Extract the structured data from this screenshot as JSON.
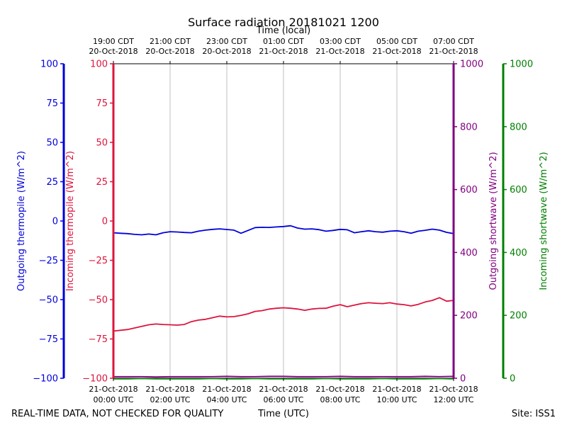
{
  "chart_data": {
    "type": "line",
    "title": "Surface radiation 20181021 1200",
    "top_axis_label": "Time (local)",
    "bottom_axis_label": "Time (UTC)",
    "footer_left": "REAL-TIME DATA, NOT CHECKED FOR QUALITY",
    "footer_right": "Site: ISS1",
    "x_utc_hours_range": [
      0,
      12
    ],
    "top_ticks": [
      {
        "hour": 0,
        "l1": "19:00 CDT",
        "l2": "20-Oct-2018"
      },
      {
        "hour": 2,
        "l1": "21:00 CDT",
        "l2": "20-Oct-2018"
      },
      {
        "hour": 4,
        "l1": "23:00 CDT",
        "l2": "20-Oct-2018"
      },
      {
        "hour": 6,
        "l1": "01:00 CDT",
        "l2": "21-Oct-2018"
      },
      {
        "hour": 8,
        "l1": "03:00 CDT",
        "l2": "21-Oct-2018"
      },
      {
        "hour": 10,
        "l1": "05:00 CDT",
        "l2": "21-Oct-2018"
      },
      {
        "hour": 12,
        "l1": "07:00 CDT",
        "l2": "21-Oct-2018"
      }
    ],
    "bottom_ticks": [
      {
        "hour": 0,
        "l1": "21-Oct-2018",
        "l2": "00:00 UTC"
      },
      {
        "hour": 2,
        "l1": "21-Oct-2018",
        "l2": "02:00 UTC"
      },
      {
        "hour": 4,
        "l1": "21-Oct-2018",
        "l2": "04:00 UTC"
      },
      {
        "hour": 6,
        "l1": "21-Oct-2018",
        "l2": "06:00 UTC"
      },
      {
        "hour": 8,
        "l1": "21-Oct-2018",
        "l2": "08:00 UTC"
      },
      {
        "hour": 10,
        "l1": "21-Oct-2018",
        "l2": "10:00 UTC"
      },
      {
        "hour": 12,
        "l1": "21-Oct-2018",
        "l2": "12:00 UTC"
      }
    ],
    "axes": [
      {
        "key": "out_thermo",
        "label": "Outgoing thermopile (W/m^2)",
        "color": "#0000dd",
        "range": [
          -100,
          100
        ],
        "ticks": [
          100,
          75,
          50,
          25,
          0,
          -25,
          -50,
          -75,
          -100
        ],
        "tick_labels": [
          "100",
          "75",
          "50",
          "25",
          "0",
          "−25",
          "−50",
          "−75",
          "−100"
        ]
      },
      {
        "key": "in_thermo",
        "label": "Incoming thermopile (W/m^2)",
        "color": "#dc143c",
        "range": [
          -100,
          100
        ],
        "ticks": [
          100,
          75,
          50,
          25,
          0,
          -25,
          -50,
          -75,
          -100
        ],
        "tick_labels": [
          "100",
          "75",
          "50",
          "25",
          "0",
          "−25",
          "−50",
          "−75",
          "−100"
        ]
      },
      {
        "key": "out_sw",
        "label": "Outgoing shortwave (W/m^2)",
        "color": "#800080",
        "range": [
          0,
          1000
        ],
        "ticks": [
          1000,
          800,
          600,
          400,
          200,
          0
        ],
        "tick_labels": [
          "1000",
          "800",
          "600",
          "400",
          "200",
          "0"
        ]
      },
      {
        "key": "in_sw",
        "label": "Incoming shortwave (W/m^2)",
        "color": "#008000",
        "range": [
          0,
          1000
        ],
        "ticks": [
          1000,
          800,
          600,
          400,
          200,
          0
        ],
        "tick_labels": [
          "1000",
          "800",
          "600",
          "400",
          "200",
          "0"
        ]
      }
    ],
    "series": [
      {
        "name": "Outgoing thermopile",
        "axis": "out_thermo",
        "color": "#0000dd",
        "x": [
          0,
          0.25,
          0.5,
          0.75,
          1.0,
          1.25,
          1.5,
          1.75,
          2.0,
          2.25,
          2.5,
          2.75,
          3.0,
          3.25,
          3.5,
          3.75,
          4.0,
          4.25,
          4.5,
          4.75,
          5.0,
          5.25,
          5.5,
          5.75,
          6.0,
          6.25,
          6.5,
          6.75,
          7.0,
          7.25,
          7.5,
          7.75,
          8.0,
          8.25,
          8.5,
          8.75,
          9.0,
          9.25,
          9.5,
          9.75,
          10.0,
          10.25,
          10.5,
          10.75,
          11.0,
          11.25,
          11.5,
          11.75,
          12.0
        ],
        "values": [
          -7.5,
          -7.8,
          -8.0,
          -8.5,
          -8.8,
          -8.3,
          -8.8,
          -7.5,
          -6.8,
          -7.0,
          -7.3,
          -7.5,
          -6.5,
          -5.8,
          -5.3,
          -5.0,
          -5.4,
          -5.8,
          -7.8,
          -6.0,
          -4.2,
          -4.0,
          -4.1,
          -3.8,
          -3.5,
          -3.0,
          -4.5,
          -5.2,
          -5.0,
          -5.5,
          -6.5,
          -6.0,
          -5.3,
          -5.6,
          -7.5,
          -6.8,
          -6.2,
          -6.8,
          -7.1,
          -6.5,
          -6.2,
          -6.8,
          -7.8,
          -6.5,
          -5.9,
          -5.2,
          -5.8,
          -7.2,
          -8.0
        ]
      },
      {
        "name": "Incoming thermopile",
        "axis": "in_thermo",
        "color": "#dc143c",
        "x": [
          0,
          0.25,
          0.5,
          0.75,
          1.0,
          1.25,
          1.5,
          1.75,
          2.0,
          2.25,
          2.5,
          2.75,
          3.0,
          3.25,
          3.5,
          3.75,
          4.0,
          4.25,
          4.5,
          4.75,
          5.0,
          5.25,
          5.5,
          5.75,
          6.0,
          6.25,
          6.5,
          6.75,
          7.0,
          7.25,
          7.5,
          7.75,
          8.0,
          8.25,
          8.5,
          8.75,
          9.0,
          9.25,
          9.5,
          9.75,
          10.0,
          10.25,
          10.5,
          10.75,
          11.0,
          11.25,
          11.5,
          11.75,
          12.0
        ],
        "values": [
          -70.0,
          -69.5,
          -69.0,
          -68.0,
          -67.0,
          -66.0,
          -65.5,
          -65.8,
          -66.0,
          -66.2,
          -65.8,
          -64.0,
          -63.0,
          -62.5,
          -61.5,
          -60.5,
          -61.0,
          -60.8,
          -60.0,
          -59.0,
          -57.5,
          -57.0,
          -56.0,
          -55.5,
          -55.2,
          -55.5,
          -56.0,
          -56.8,
          -56.0,
          -55.6,
          -55.5,
          -54.2,
          -53.2,
          -54.5,
          -53.5,
          -52.5,
          -52.0,
          -52.3,
          -52.5,
          -52.0,
          -52.8,
          -53.2,
          -54.0,
          -53.0,
          -51.5,
          -50.5,
          -48.8,
          -51.0,
          -50.5
        ]
      },
      {
        "name": "Outgoing shortwave",
        "axis": "out_sw",
        "color": "#800080",
        "x": [
          0,
          0.5,
          1.0,
          1.5,
          2.0,
          2.5,
          3.0,
          3.5,
          4.0,
          4.5,
          5.0,
          5.5,
          6.0,
          6.5,
          7.0,
          7.5,
          8.0,
          8.5,
          9.0,
          9.5,
          10.0,
          10.5,
          11.0,
          11.5,
          12.0
        ],
        "values": [
          5,
          5,
          5,
          4,
          5,
          5,
          5,
          5,
          6,
          5,
          5,
          6,
          6,
          5,
          5,
          5,
          6,
          5,
          5,
          5,
          5,
          5,
          6,
          5,
          6
        ]
      },
      {
        "name": "Incoming shortwave",
        "axis": "in_sw",
        "color": "#008000",
        "x": [
          0,
          0.5,
          1.0,
          1.5,
          2.0,
          2.5,
          3.0,
          3.5,
          4.0,
          4.5,
          5.0,
          5.5,
          6.0,
          6.5,
          7.0,
          7.5,
          8.0,
          8.5,
          9.0,
          9.5,
          10.0,
          10.5,
          11.0,
          11.5,
          12.0
        ],
        "values": [
          -2,
          -2,
          -1,
          -2,
          -2,
          -2,
          -2,
          -1,
          -2,
          -2,
          -1,
          -2,
          -2,
          -2,
          -2,
          -1,
          -2,
          -2,
          -2,
          -1,
          -2,
          -2,
          -2,
          -1,
          -2
        ]
      }
    ]
  }
}
